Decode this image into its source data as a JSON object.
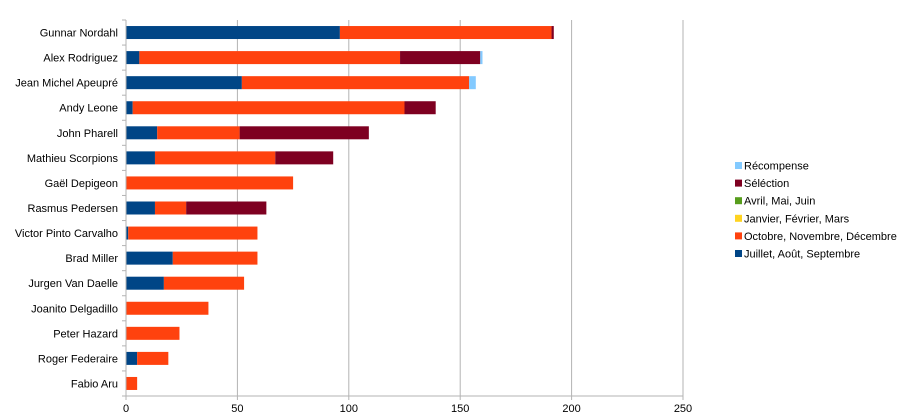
{
  "chart_data": {
    "type": "bar",
    "orientation": "horizontal",
    "stacked": true,
    "categories": [
      "Gunnar Nordahl",
      "Alex Rodriguez",
      "Jean Michel Apeupré",
      "Andy Leone",
      "John Pharell",
      "Mathieu Scorpions",
      "Gaël Depigeon",
      "Rasmus Pedersen",
      "Victor Pinto Carvalho",
      "Brad Miller",
      "Jurgen Van Daelle",
      "Joanito Delgadillo",
      "Peter Hazard",
      "Roger Federaire",
      "Fabio Aru"
    ],
    "series": [
      {
        "name": "Juillet, Août, Septembre",
        "color": "#004586",
        "values": [
          96,
          6,
          52,
          3,
          14,
          13,
          0,
          13,
          1,
          21,
          17,
          0,
          0,
          5,
          0
        ]
      },
      {
        "name": "Octobre, Novembre, Décembre",
        "color": "#ff420e",
        "values": [
          95,
          117,
          102,
          122,
          37,
          54,
          75,
          14,
          58,
          38,
          36,
          37,
          24,
          14,
          5
        ]
      },
      {
        "name": "Janvier, Février, Mars",
        "color": "#ffd320",
        "values": [
          0,
          0,
          0,
          0,
          0,
          0,
          0,
          0,
          0,
          0,
          0,
          0,
          0,
          0,
          0
        ]
      },
      {
        "name": "Avril, Mai, Juin",
        "color": "#579d1c",
        "values": [
          0,
          0,
          0,
          0,
          0,
          0,
          0,
          0,
          0,
          0,
          0,
          0,
          0,
          0,
          0
        ]
      },
      {
        "name": "Séléction",
        "color": "#7e0021",
        "values": [
          1,
          36,
          0,
          14,
          58,
          26,
          0,
          36,
          0,
          0,
          0,
          0,
          0,
          0,
          0
        ]
      },
      {
        "name": "Récompense",
        "color": "#83caff",
        "values": [
          0,
          1,
          3,
          0,
          0,
          0,
          0,
          0,
          0,
          0,
          0,
          0,
          0,
          0,
          0
        ]
      }
    ],
    "xlim": [
      0,
      250
    ],
    "xticks": [
      "0",
      "50",
      "100",
      "150",
      "200",
      "250"
    ],
    "grid": true,
    "legend_position": "right",
    "legend_order": [
      "Récompense",
      "Séléction",
      "Avril, Mai, Juin",
      "Janvier, Février, Mars",
      "Octobre, Novembre, Décembre",
      "Juillet, Août, Septembre"
    ]
  }
}
